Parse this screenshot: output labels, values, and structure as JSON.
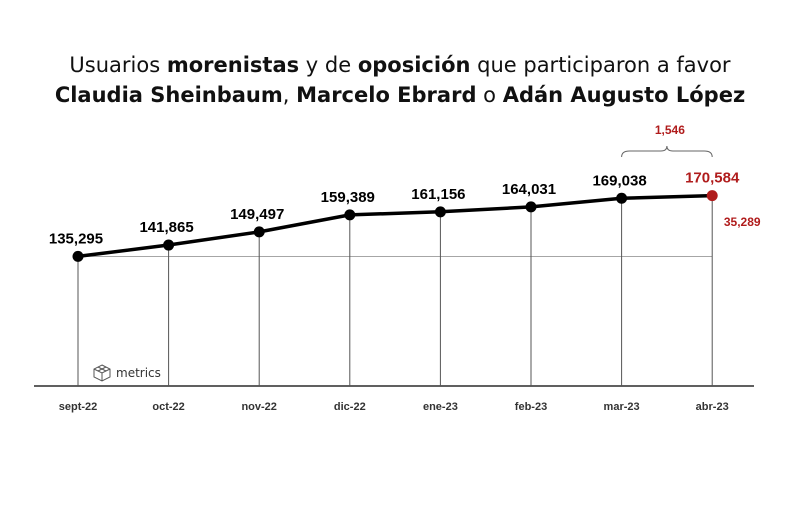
{
  "title": {
    "l1_a": "Usuarios ",
    "l1_b": "morenistas",
    "l1_c": " y de ",
    "l1_d": "oposición",
    "l1_e": " que participaron a favor",
    "l2_a": "Claudia Sheinbaum",
    "l2_b": ", ",
    "l2_c": "Marcelo Ebrard",
    "l2_d": " o ",
    "l2_e": "Adán Augusto López"
  },
  "logo": {
    "text": "metrics"
  },
  "colors": {
    "line": "#000000",
    "highlight": "#b01c1c",
    "grid": "#555555"
  },
  "chart_data": {
    "type": "line",
    "categories": [
      "sept-22",
      "oct-22",
      "nov-22",
      "dic-22",
      "ene-23",
      "feb-23",
      "mar-23",
      "abr-23"
    ],
    "values": [
      135295,
      141865,
      149497,
      159389,
      161156,
      164031,
      169038,
      170584
    ],
    "value_labels": [
      "135,295",
      "141,865",
      "149,497",
      "159,389",
      "161,156",
      "164,031",
      "169,038",
      "170,584"
    ],
    "ylim": [
      60000,
      175000
    ],
    "grid": false,
    "annotations": {
      "last_month_diff": "1,546",
      "total_diff": "35,289"
    }
  }
}
